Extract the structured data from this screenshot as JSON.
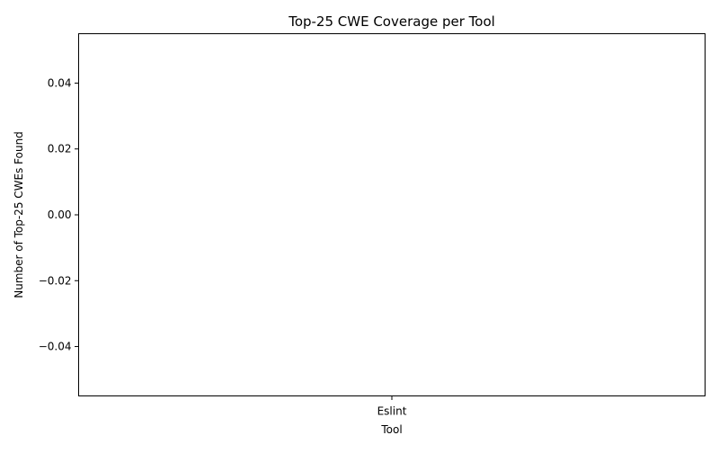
{
  "chart_data": {
    "type": "bar",
    "title": "Top-25 CWE Coverage per Tool",
    "xlabel": "Tool",
    "ylabel": "Number of Top-25 CWEs Found",
    "categories": [
      "Eslint"
    ],
    "values": [
      0
    ],
    "ylim": [
      -0.055,
      0.055
    ],
    "yticks": [
      -0.04,
      -0.02,
      0.0,
      0.02,
      0.04
    ],
    "ytick_labels": [
      "−0.04",
      "−0.02",
      "0.00",
      "0.02",
      "0.04"
    ],
    "grid": false,
    "legend": "none",
    "bar_color": "#1f77b4"
  }
}
